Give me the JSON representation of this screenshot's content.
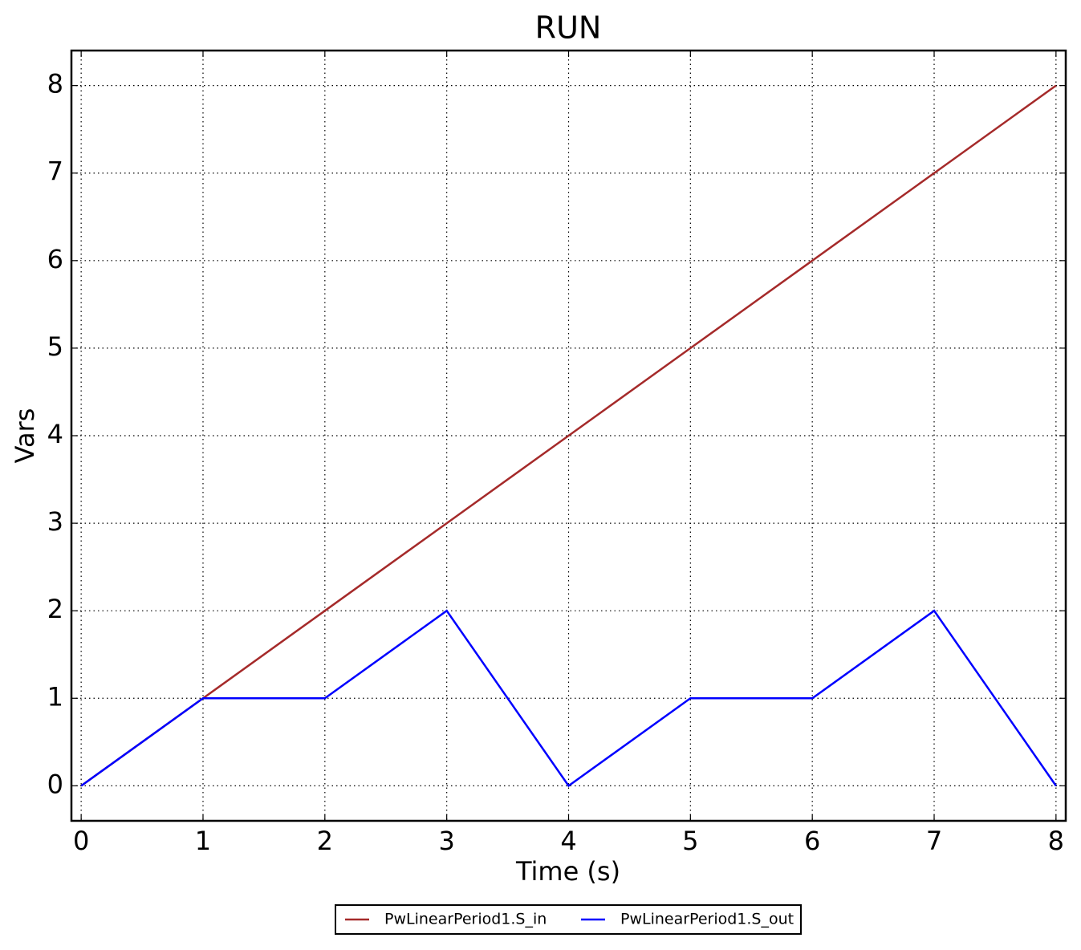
{
  "chart_data": {
    "type": "line",
    "title": "RUN",
    "x_label": "Time (s)",
    "y_label": "Vars",
    "x": [
      0,
      1,
      2,
      3,
      4,
      5,
      6,
      7,
      8
    ],
    "series": [
      {
        "name": "PwLinearPeriod1.S_in",
        "color": "#a52a2a",
        "values": [
          0,
          1,
          2,
          3,
          4,
          5,
          6,
          7,
          8
        ]
      },
      {
        "name": "PwLinearPeriod1.S_out",
        "color": "#0000ff",
        "values": [
          0,
          1,
          1,
          2,
          0,
          1,
          1,
          2,
          0
        ]
      }
    ],
    "xlim": [
      -0.08,
      8.08
    ],
    "ylim": [
      -0.4,
      8.4
    ],
    "xticks": [
      0,
      1,
      2,
      3,
      4,
      5,
      6,
      7,
      8
    ],
    "yticks": [
      0,
      1,
      2,
      3,
      4,
      5,
      6,
      7,
      8
    ],
    "grid": true,
    "legend": "bottom"
  }
}
